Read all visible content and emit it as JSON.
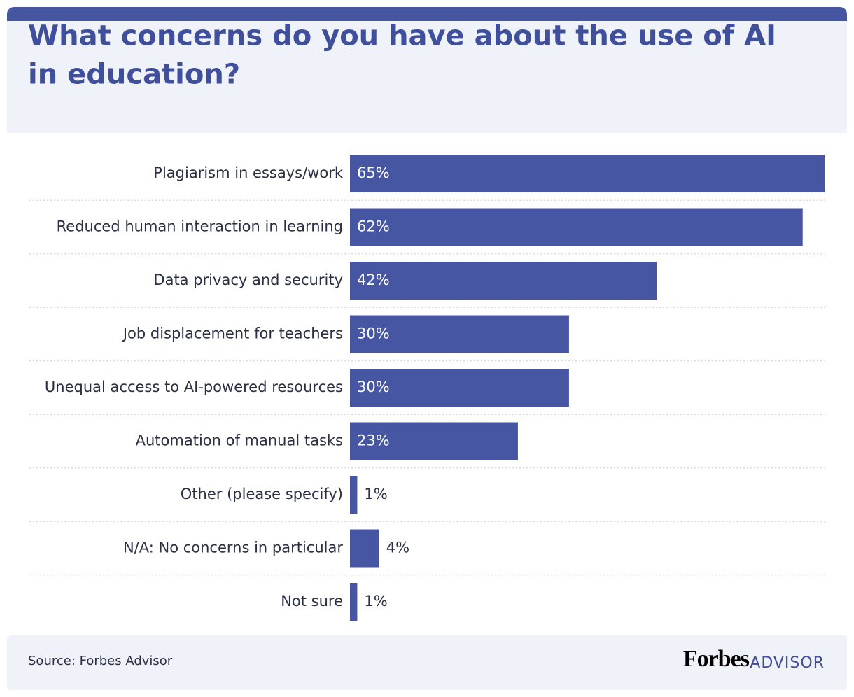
{
  "chart_data": {
    "type": "bar",
    "orientation": "horizontal",
    "title": "What concerns do you have about the use of AI in education?",
    "categories": [
      "Plagiarism in essays/work",
      "Reduced human interaction in learning",
      "Data privacy and security",
      "Job displacement for teachers",
      "Unequal access to AI-powered resources",
      "Automation of manual tasks",
      "Other (please specify)",
      "N/A: No concerns in particular",
      "Not sure"
    ],
    "values": [
      65,
      62,
      42,
      30,
      30,
      23,
      1,
      4,
      1
    ],
    "value_labels": [
      "65%",
      "62%",
      "42%",
      "30%",
      "30%",
      "23%",
      "1%",
      "4%",
      "1%"
    ],
    "color": "#4656a3",
    "source": "Source: Forbes Advisor",
    "brand": "Forbes",
    "brand_suffix": "ADVISOR"
  }
}
